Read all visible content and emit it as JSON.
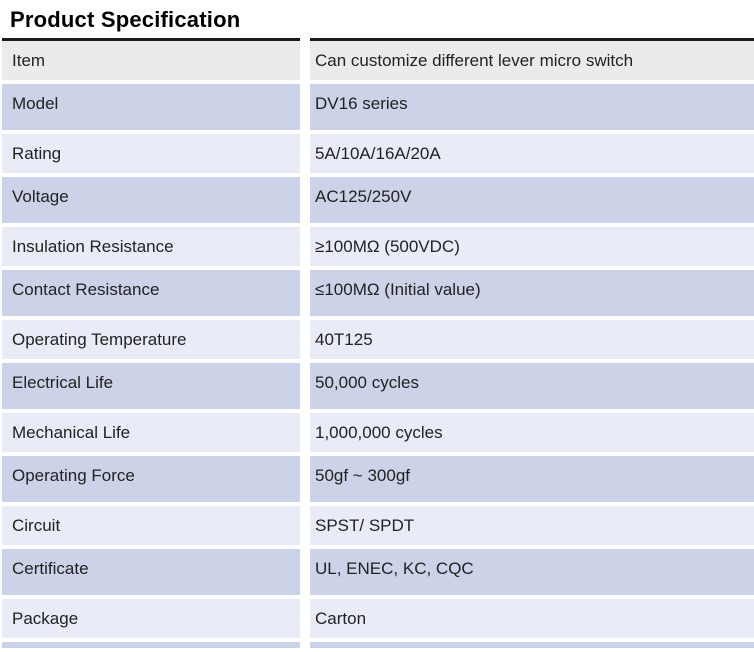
{
  "page": {
    "title": "Product Specification"
  },
  "table": {
    "header": {
      "label": "Item",
      "value": "Can customize different lever micro switch"
    },
    "rows": [
      {
        "label": "Model",
        "value": "DV16 series"
      },
      {
        "label": "Rating",
        "value": "5A/10A/16A/20A"
      },
      {
        "label": "Voltage",
        "value": "AC125/250V"
      },
      {
        "label": "Insulation Resistance",
        "value": "≥100MΩ (500VDC)"
      },
      {
        "label": "Contact Resistance",
        "value": "≤100MΩ (Initial value)"
      },
      {
        "label": "Operating Temperature",
        "value": "40T125"
      },
      {
        "label": "Electrical Life",
        "value": "50,000 cycles"
      },
      {
        "label": "Mechanical Life",
        "value": "1,000,000 cycles"
      },
      {
        "label": "Operating Force",
        "value": "50gf ~ 300gf"
      },
      {
        "label": "Circuit",
        "value": "SPST/ SPDT"
      },
      {
        "label": "Certificate",
        "value": "UL, ENEC, KC, CQC"
      },
      {
        "label": "Package",
        "value": "Carton"
      }
    ]
  },
  "colors": {
    "header_bg": "#ebebeb",
    "row_alt_bg": "#ccd2e8",
    "row_bg": "#e9ecf6",
    "top_rule": "#1a1a1a",
    "text": "#222222"
  }
}
